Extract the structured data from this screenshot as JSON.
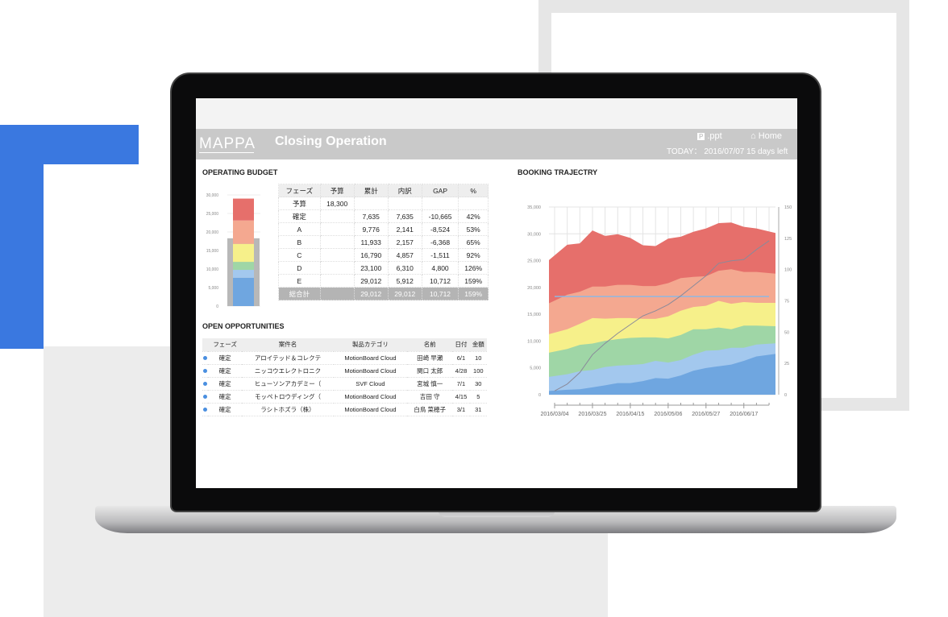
{
  "app": {
    "logo": "MAPPA",
    "title": "Closing Operation",
    "ppt_label": ".ppt",
    "home_label": "Home",
    "today_label": "TODAY：",
    "today_date": "2016/07/07",
    "days_left": "15 days left"
  },
  "budget": {
    "title": "OPERATING BUDGET",
    "headers": [
      "フェーズ",
      "予算",
      "累計",
      "内訳",
      "GAP",
      "%"
    ],
    "rows": [
      [
        "予算",
        "18,300",
        "",
        "",
        "",
        ""
      ],
      [
        "確定",
        "",
        "7,635",
        "7,635",
        "-10,665",
        "42%"
      ],
      [
        "A",
        "",
        "9,776",
        "2,141",
        "-8,524",
        "53%"
      ],
      [
        "B",
        "",
        "11,933",
        "2,157",
        "-6,368",
        "65%"
      ],
      [
        "C",
        "",
        "16,790",
        "4,857",
        "-1,511",
        "92%"
      ],
      [
        "D",
        "",
        "23,100",
        "6,310",
        "4,800",
        "126%"
      ],
      [
        "E",
        "",
        "29,012",
        "5,912",
        "10,712",
        "159%"
      ]
    ],
    "total": [
      "総合計",
      "",
      "29,012",
      "29,012",
      "10,712",
      "159%"
    ],
    "bar_axis_ticks": [
      "0",
      "5,000",
      "10,000",
      "15,000",
      "20,000",
      "25,000",
      "30,000"
    ],
    "bar_budget": 18300,
    "bar_cumulative": [
      7635,
      9776,
      11933,
      16790,
      23100,
      29012
    ],
    "colors": [
      "#6fa6e0",
      "#a3c8ee",
      "#9fd6a6",
      "#f6f08a",
      "#f4a890",
      "#e66f6b"
    ]
  },
  "opportunities": {
    "title": "OPEN OPPORTUNITIES",
    "headers": [
      "フェーズ",
      "案件名",
      "製品カテゴリ",
      "名前",
      "日付",
      "金額"
    ],
    "rows": [
      [
        "確定",
        "アロイテッド＆コレクテ",
        "MotionBoard Cloud",
        "田崎 早瀬",
        "6/1",
        "10"
      ],
      [
        "確定",
        "ニッコウエレクトロニク",
        "MotionBoard Cloud",
        "関口 太郎",
        "4/28",
        "100"
      ],
      [
        "確定",
        "ヒューソンアカデミー（",
        "SVF Cloud",
        "宮城 慎一",
        "7/1",
        "30"
      ],
      [
        "確定",
        "モッペトロウディング（",
        "MotionBoard Cloud",
        "吉田 守",
        "4/15",
        "5"
      ],
      [
        "確定",
        "ラシトホズラ（株）",
        "MotionBoard Cloud",
        "白鳥 菜穂子",
        "3/1",
        "31"
      ]
    ]
  },
  "chart_data": {
    "type": "area",
    "title": "BOOKING TRAJECTRY",
    "stacked": true,
    "x": [
      "2016/03/04",
      "2016/03/11",
      "2016/03/18",
      "2016/03/25",
      "2016/04/01",
      "2016/04/08",
      "2016/04/15",
      "2016/04/22",
      "2016/04/29",
      "2016/05/06",
      "2016/05/13",
      "2016/05/20",
      "2016/05/27",
      "2016/06/03",
      "2016/06/10",
      "2016/06/17",
      "2016/06/24",
      "2016/07/01"
    ],
    "x_tick_labels": [
      "2016/03/04",
      "2016/03/25",
      "2016/04/15",
      "2016/05/06",
      "2016/05/27",
      "2016/06/17"
    ],
    "ylim": [
      0,
      35000
    ],
    "y_ticks": [
      "0",
      "5,000",
      "10,000",
      "15,000",
      "20,000",
      "25,000",
      "30,000",
      "35,000"
    ],
    "y2lim": [
      0,
      150
    ],
    "y2_ticks": [
      "0",
      "25",
      "50",
      "75",
      "100",
      "125",
      "150"
    ],
    "grid": true,
    "cumulative_tops": [
      {
        "color": "#6fa6e0",
        "values": [
          690,
          920,
          1010,
          1380,
          1750,
          2160,
          2160,
          2530,
          3090,
          2990,
          3590,
          4470,
          4970,
          5300,
          5620,
          6310,
          7140,
          7600
        ]
      },
      {
        "color": "#a3c8ee",
        "values": [
          3320,
          3820,
          4380,
          4600,
          5160,
          5430,
          5530,
          5710,
          6310,
          5990,
          6450,
          7460,
          8200,
          8290,
          8750,
          8750,
          9350,
          9580
        ]
      },
      {
        "color": "#9fd6a6",
        "values": [
          7830,
          8520,
          9300,
          9530,
          10040,
          10360,
          10590,
          10680,
          10680,
          10500,
          11140,
          12200,
          12200,
          12530,
          12200,
          12890,
          12890,
          12760
        ]
      },
      {
        "color": "#f6f08a",
        "values": [
          11280,
          12200,
          13220,
          14280,
          14180,
          14280,
          14280,
          14140,
          14140,
          14600,
          15660,
          16350,
          16580,
          17500,
          16950,
          17270,
          17130,
          17130
        ]
      },
      {
        "color": "#f4a890",
        "values": [
          17040,
          18650,
          19200,
          20170,
          20170,
          20490,
          20490,
          20260,
          20260,
          20800,
          21740,
          21970,
          22100,
          23120,
          23400,
          22890,
          22890,
          22570
        ]
      },
      {
        "color": "#e66f6b",
        "values": [
          25100,
          27950,
          28230,
          30620,
          29610,
          29930,
          29240,
          27860,
          27720,
          29100,
          29470,
          30390,
          31000,
          32000,
          32100,
          31300,
          31000,
          30160
        ]
      }
    ],
    "budget_line": {
      "value": 18300,
      "color": "#8fb7e0"
    },
    "count_line": {
      "axis": "right",
      "color": "#8a8a9a",
      "values": [
        3,
        8.5,
        17.7,
        32,
        41,
        49,
        56,
        63,
        67,
        72,
        79,
        87,
        95,
        105,
        107,
        108,
        116,
        123
      ]
    }
  }
}
